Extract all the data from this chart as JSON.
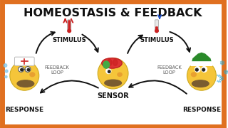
{
  "title": "HOMEOSTASIS & FEEDBACK",
  "title_fontsize": 11.5,
  "title_color": "#111111",
  "background_color": "#ffffff",
  "border_color": "#e07020",
  "border_lw": 5,
  "left_label": "RESPONSE",
  "right_label": "RESPONSE",
  "center_label": "SENSOR",
  "stimulus_left": "STIMULUS",
  "stimulus_right": "STIMULUS",
  "feedback_left": "FEEDBACK\nLOOP",
  "feedback_right": "FEEDBACK\nLOOP",
  "arrow_color": "#111111",
  "hot_color": "#cc2222",
  "cold_color": "#2255cc",
  "snowflake_color": "#33aacc",
  "sweat_color": "#88ccee",
  "label_fontsize": 6.5,
  "small_fontsize": 4.5,
  "homer_yellow": "#f5c53a",
  "homer_skin_dark": "#e8a030",
  "homer_beard": "#7a5c30",
  "homer_eye_white": "#ffffff",
  "homer_eye_dark": "#222222"
}
